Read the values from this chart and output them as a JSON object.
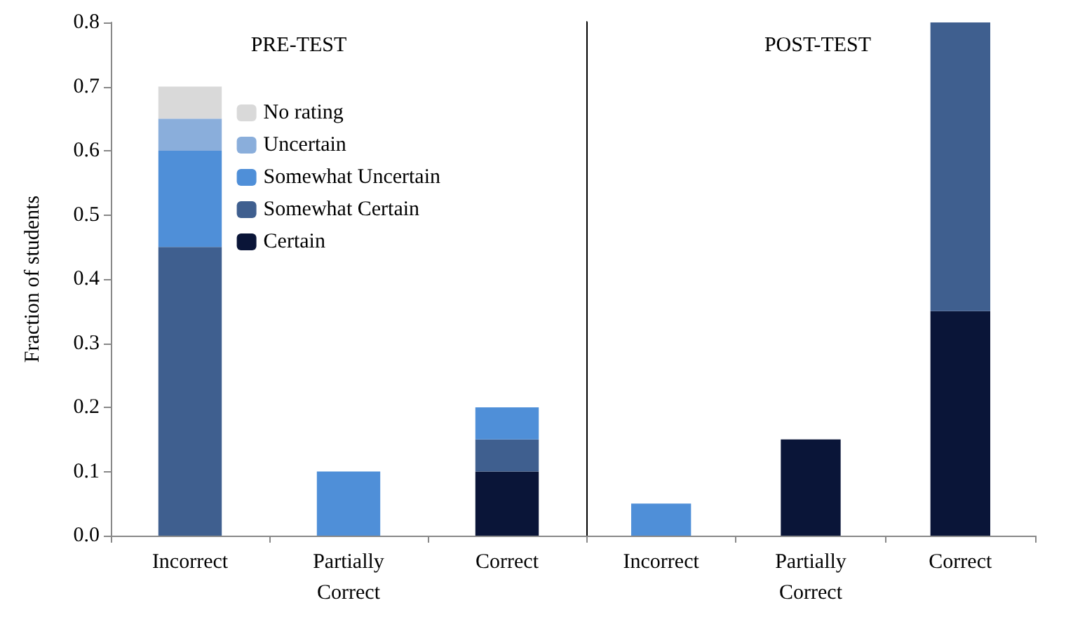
{
  "chart_data": [
    {
      "type": "bar",
      "stacked": true,
      "title": "PRE-TEST",
      "ylabel": "Fraction of students",
      "categories": [
        "Incorrect",
        "Partially\nCorrect",
        "Correct"
      ],
      "ylim": [
        0,
        0.8
      ],
      "yticks": [
        {
          "value": 0,
          "label": "0.0"
        },
        0.1,
        0.2,
        0.3,
        0.4,
        0.5,
        0.6,
        0.7,
        0.8
      ],
      "legend": "top",
      "grid": false,
      "series": [
        {
          "name": "Certain",
          "color": "#0a1538",
          "values": [
            null,
            null,
            0.1
          ]
        },
        {
          "name": "Somewhat Certain",
          "color": "#3f5f8f",
          "values": [
            0.45,
            null,
            0.05
          ]
        },
        {
          "name": "Somewhat Uncertain",
          "color": "#4f8fd8",
          "values": [
            0.15,
            0.1,
            0.05
          ]
        },
        {
          "name": "Uncertain",
          "color": "#8aaedb",
          "values": [
            0.05,
            null,
            null
          ]
        },
        {
          "name": "No rating",
          "color": "#d9d9d9",
          "values": [
            0.05,
            null,
            null
          ]
        }
      ]
    },
    {
      "type": "bar",
      "stacked": true,
      "title": "POST-TEST",
      "categories": [
        "Incorrect",
        "Partially\nCorrect",
        "Correct"
      ],
      "ylim": [
        0,
        0.8
      ],
      "tick_labels": "x",
      "grid": false,
      "series": [
        {
          "color": "#0a1538",
          "values": [
            null,
            0.15,
            0.35
          ]
        },
        {
          "color": "#3f5f8f",
          "values": [
            null,
            null,
            0.45
          ]
        },
        {
          "color": "#4f8fd8",
          "values": [
            0.05,
            null,
            null
          ]
        }
      ]
    }
  ]
}
